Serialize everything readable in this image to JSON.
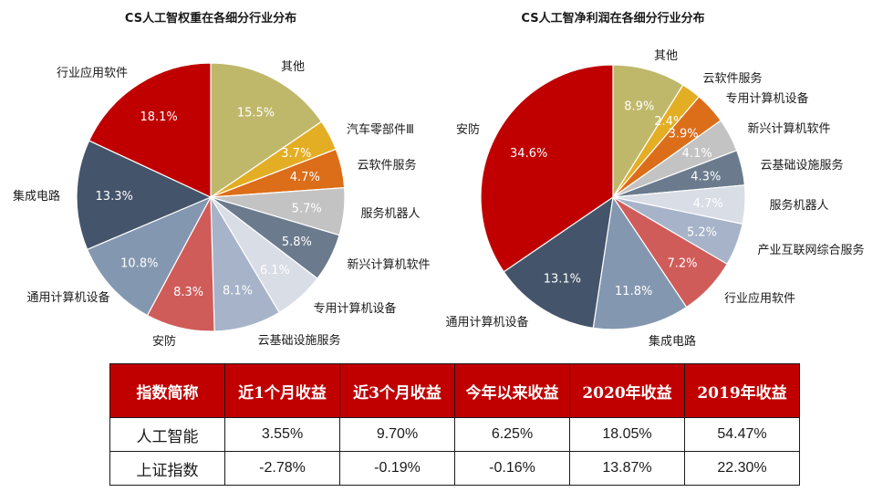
{
  "chart_data": [
    {
      "type": "pie",
      "title": "CS人工智权重在各细分行业分布",
      "slices": [
        {
          "label": "其他",
          "value": 15.5,
          "value_label": "15.5%",
          "color": "#bfb86a",
          "text_color": "#ffffff"
        },
        {
          "label": "汽车零部件Ⅲ",
          "value": 3.7,
          "value_label": "3.7%",
          "color": "#e3ae24",
          "text_color": "#ffffff"
        },
        {
          "label": "云软件服务",
          "value": 4.7,
          "value_label": "4.7%",
          "color": "#dc6d19",
          "text_color": "#ffffff"
        },
        {
          "label": "服务机器人",
          "value": 5.7,
          "value_label": "5.7%",
          "color": "#c3c3c3",
          "text_color": "#ffffff"
        },
        {
          "label": "新兴计算机软件",
          "value": 5.8,
          "value_label": "5.8%",
          "color": "#6b7b8d",
          "text_color": "#ffffff"
        },
        {
          "label": "专用计算机设备",
          "value": 6.1,
          "value_label": "6.1%",
          "color": "#d9dde6",
          "text_color": "#ffffff"
        },
        {
          "label": "云基础设施服务",
          "value": 8.1,
          "value_label": "8.1%",
          "color": "#a6b3c8",
          "text_color": "#ffffff"
        },
        {
          "label": "安防",
          "value": 8.3,
          "value_label": "8.3%",
          "color": "#d05c5a",
          "text_color": "#ffffff"
        },
        {
          "label": "通用计算机设备",
          "value": 10.8,
          "value_label": "10.8%",
          "color": "#8497b0",
          "text_color": "#ffffff"
        },
        {
          "label": "集成电路",
          "value": 13.3,
          "value_label": "13.3%",
          "color": "#44546a",
          "text_color": "#ffffff"
        },
        {
          "label": "行业应用软件",
          "value": 18.1,
          "value_label": "18.1%",
          "color": "#c00000",
          "text_color": "#ffffff"
        }
      ]
    },
    {
      "type": "pie",
      "title": "CS人工智净利润在各细分行业分布",
      "slices": [
        {
          "label": "其他",
          "value": 8.9,
          "value_label": "8.9%",
          "color": "#bfb86a",
          "text_color": "#ffffff"
        },
        {
          "label": "云软件服务",
          "value": 2.4,
          "value_label": "2.4%",
          "color": "#e3ae24",
          "text_color": "#ffffff"
        },
        {
          "label": "专用计算机设备",
          "value": 3.9,
          "value_label": "3.9%",
          "color": "#dc6d19",
          "text_color": "#ffffff"
        },
        {
          "label": "新兴计算机软件",
          "value": 4.1,
          "value_label": "4.1%",
          "color": "#c3c3c3",
          "text_color": "#ffffff"
        },
        {
          "label": "云基础设施服务",
          "value": 4.3,
          "value_label": "4.3%",
          "color": "#6b7b8d",
          "text_color": "#ffffff"
        },
        {
          "label": "服务机器人",
          "value": 4.7,
          "value_label": "4.7%",
          "color": "#d9dde6",
          "text_color": "#ffffff"
        },
        {
          "label": "产业互联网综合服务",
          "value": 5.2,
          "value_label": "5.2%",
          "color": "#a6b3c8",
          "text_color": "#ffffff"
        },
        {
          "label": "行业应用软件",
          "value": 7.2,
          "value_label": "7.2%",
          "color": "#d05c5a",
          "text_color": "#ffffff"
        },
        {
          "label": "集成电路",
          "value": 11.8,
          "value_label": "11.8%",
          "color": "#8497b0",
          "text_color": "#ffffff"
        },
        {
          "label": "通用计算机设备",
          "value": 13.1,
          "value_label": "13.1%",
          "color": "#44546a",
          "text_color": "#ffffff"
        },
        {
          "label": "安防",
          "value": 34.6,
          "value_label": "34.6%",
          "color": "#c00000",
          "text_color": "#ffffff"
        }
      ]
    }
  ],
  "table": {
    "headers": [
      "指数简称",
      "近1个月收益",
      "近3个月收益",
      "今年以来收益",
      "2020年收益",
      "2019年收益"
    ],
    "rows": [
      [
        "人工智能",
        "3.55%",
        "9.70%",
        "6.25%",
        "18.05%",
        "54.47%"
      ],
      [
        "上证指数",
        "-2.78%",
        "-0.19%",
        "-0.16%",
        "13.87%",
        "22.30%"
      ]
    ]
  }
}
